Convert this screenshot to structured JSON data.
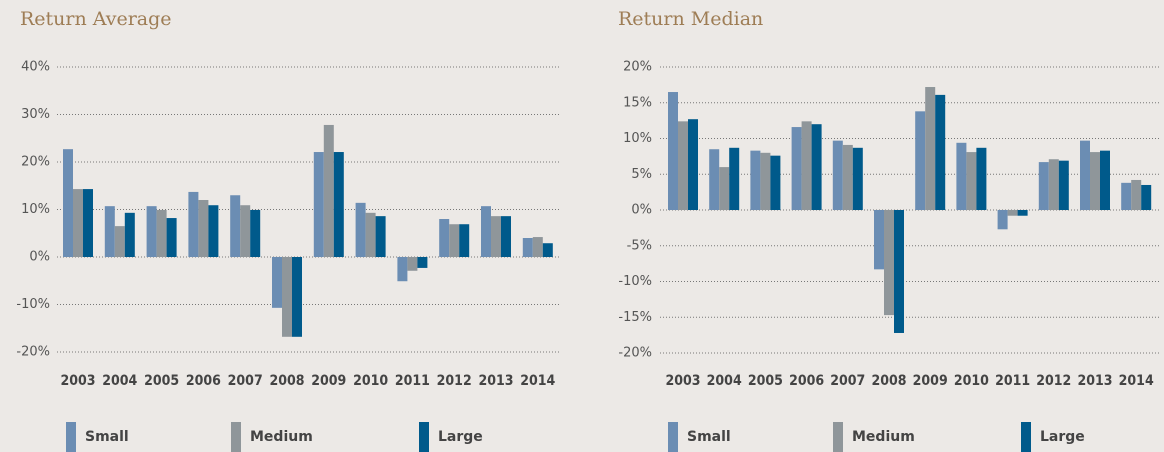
{
  "chart_data": [
    {
      "type": "bar",
      "title": "Return Average",
      "categories": [
        "2003",
        "2004",
        "2005",
        "2006",
        "2007",
        "2008",
        "2009",
        "2010",
        "2011",
        "2012",
        "2013",
        "2014"
      ],
      "series": [
        {
          "name": "Small",
          "color": "#6b8db3",
          "values": [
            22.7,
            10.7,
            10.7,
            13.7,
            13.0,
            -10.7,
            22.1,
            11.4,
            -5.1,
            8.0,
            10.7,
            4.0
          ]
        },
        {
          "name": "Medium",
          "color": "#8f969a",
          "values": [
            14.3,
            6.5,
            9.9,
            12.0,
            10.9,
            -16.8,
            27.8,
            9.3,
            -2.9,
            6.9,
            8.6,
            4.2
          ]
        },
        {
          "name": "Large",
          "color": "#005a8b",
          "values": [
            14.3,
            9.3,
            8.2,
            10.9,
            9.9,
            -16.8,
            22.1,
            8.6,
            -2.3,
            6.9,
            8.6,
            2.9
          ]
        }
      ],
      "ylim": [
        -20,
        40
      ],
      "yticks": [
        {
          "value": -20,
          "label": "-20%"
        },
        {
          "value": -10,
          "label": "-10%"
        },
        {
          "value": 0,
          "label": "0%"
        },
        {
          "value": 10,
          "label": "10%"
        },
        {
          "value": 20,
          "label": "20%"
        },
        {
          "value": 30,
          "label": "30%"
        },
        {
          "value": 40,
          "label": "40%"
        }
      ],
      "grid": true
    },
    {
      "type": "bar",
      "title": "Return Median",
      "categories": [
        "2003",
        "2004",
        "2005",
        "2006",
        "2007",
        "2008",
        "2009",
        "2010",
        "2011",
        "2012",
        "2013",
        "2014"
      ],
      "series": [
        {
          "name": "Small",
          "color": "#6b8db3",
          "values": [
            16.5,
            8.5,
            8.3,
            11.6,
            9.7,
            -8.3,
            13.8,
            9.4,
            -2.7,
            6.7,
            9.7,
            3.8
          ]
        },
        {
          "name": "Medium",
          "color": "#8f969a",
          "values": [
            12.4,
            6.0,
            8.0,
            12.4,
            9.1,
            -14.7,
            17.2,
            8.1,
            -0.8,
            7.1,
            8.1,
            4.2
          ]
        },
        {
          "name": "Large",
          "color": "#005a8b",
          "values": [
            12.7,
            8.7,
            7.6,
            12.0,
            8.7,
            -17.2,
            16.1,
            8.7,
            -0.8,
            6.9,
            8.3,
            3.5
          ]
        }
      ],
      "ylim": [
        -20,
        20
      ],
      "yticks": [
        {
          "value": -20,
          "label": "-20%"
        },
        {
          "value": -15,
          "label": "-15%"
        },
        {
          "value": -10,
          "label": "-10%"
        },
        {
          "value": -5,
          "label": "-5%"
        },
        {
          "value": 0,
          "label": "0%"
        },
        {
          "value": 5,
          "label": "5%"
        },
        {
          "value": 10,
          "label": "10%"
        },
        {
          "value": 15,
          "label": "15%"
        },
        {
          "value": 20,
          "label": "20%"
        }
      ],
      "grid": true
    }
  ]
}
